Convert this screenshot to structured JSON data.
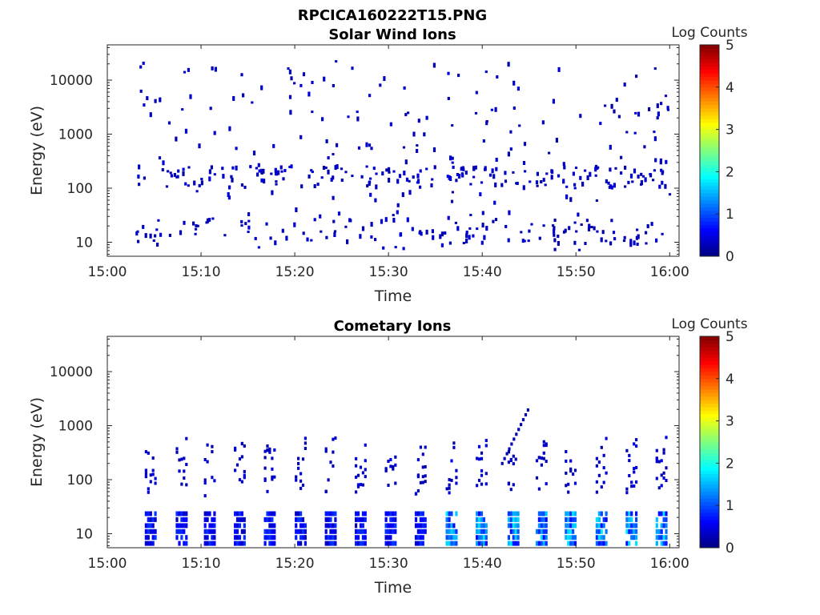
{
  "figure_title": "RPCICA160222T15.PNG",
  "chart_data": [
    {
      "type": "heatmap",
      "title": "Solar Wind Ions",
      "xlabel": "Time",
      "ylabel": "Energy (eV)",
      "yscale": "log",
      "ylim": [
        5.5,
        45000
      ],
      "xlim": [
        "15:00",
        "16:01"
      ],
      "x_ticks": [
        "15:00",
        "15:10",
        "15:20",
        "15:30",
        "15:40",
        "15:50",
        "16:00"
      ],
      "y_ticks": [
        {
          "v": 10,
          "label": "10"
        },
        {
          "v": 100,
          "label": "100"
        },
        {
          "v": 1000,
          "label": "1000"
        },
        {
          "v": 10000,
          "label": "10000"
        }
      ],
      "colorbar": {
        "label": "Log Counts",
        "min": 0,
        "max": 5,
        "ticks": [
          "0",
          "1",
          "2",
          "3",
          "4",
          "5"
        ]
      },
      "data_start": "15:03",
      "data_end": "16:00",
      "description_of_cells": "sparse single-count pixels at all energies, concentrated near 200 eV and 15-25 eV"
    },
    {
      "type": "heatmap",
      "title": "Cometary Ions",
      "xlabel": "Time",
      "ylabel": "Energy (eV)",
      "yscale": "log",
      "ylim": [
        5.5,
        45000
      ],
      "xlim": [
        "15:00",
        "16:01"
      ],
      "x_ticks": [
        "15:00",
        "15:10",
        "15:20",
        "15:30",
        "15:40",
        "15:50",
        "16:00"
      ],
      "y_ticks": [
        {
          "v": 10,
          "label": "10"
        },
        {
          "v": 100,
          "label": "100"
        },
        {
          "v": 1000,
          "label": "1000"
        },
        {
          "v": 10000,
          "label": "10000"
        }
      ],
      "colorbar": {
        "label": "Log Counts",
        "min": 0,
        "max": 5,
        "ticks": [
          "0",
          "1",
          "2",
          "3",
          "4",
          "5"
        ]
      },
      "burst_minutes": [
        4.5,
        7.8,
        10.8,
        14,
        17.2,
        20.5,
        23.7,
        26.9,
        30.1,
        33.3,
        36.6,
        39.8,
        43.2,
        46.2,
        49.3,
        52.6,
        55.8,
        59
      ]
    }
  ]
}
